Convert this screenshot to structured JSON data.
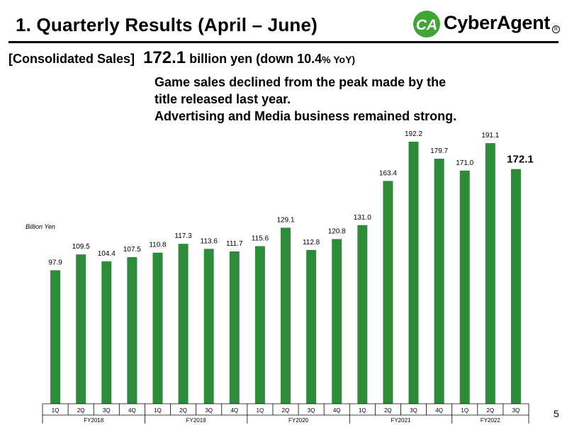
{
  "header": {
    "title": "1.  Quarterly Results (April – June)",
    "logo_text": "CyberAgent"
  },
  "colors": {
    "bar": "#2e8b3a",
    "logo_green": "#3fa535",
    "rule": "#000000"
  },
  "headline": {
    "label": "[Consolidated Sales]",
    "amount": "172.1",
    "amount_suffix": " billion yen (down ",
    "change_value": "10.4",
    "change_suffix": "% YoY)"
  },
  "summary": [
    "Game sales declined from the peak made by the",
    "title released last year.",
    "Advertising and Media business remained strong."
  ],
  "chart_data": {
    "type": "bar",
    "title": "",
    "ylabel": "Billion Yen",
    "ylim": [
      0,
      200
    ],
    "grid": false,
    "categories": [
      "1Q",
      "2Q",
      "3Q",
      "4Q",
      "1Q",
      "2Q",
      "3Q",
      "4Q",
      "1Q",
      "2Q",
      "3Q",
      "4Q",
      "1Q",
      "2Q",
      "3Q",
      "4Q",
      "1Q",
      "2Q",
      "3Q"
    ],
    "values": [
      97.9,
      109.5,
      104.4,
      107.5,
      110.8,
      117.3,
      113.6,
      111.7,
      115.6,
      129.1,
      112.8,
      120.8,
      131.0,
      163.4,
      192.2,
      179.7,
      171.0,
      191.1,
      172.1
    ],
    "value_labels": [
      "97.9",
      "109.5",
      "104.4",
      "107.5",
      "110.8",
      "117.3",
      "113.6",
      "111.7",
      "115.6",
      "129.1",
      "112.8",
      "120.8",
      "131.0",
      "163.4",
      "192.2",
      "179.7",
      "171.0",
      "191.1",
      "172.1"
    ],
    "fiscal_years": [
      {
        "label": "FY2018",
        "count": 4
      },
      {
        "label": "FY2019",
        "count": 4
      },
      {
        "label": "FY2020",
        "count": 4
      },
      {
        "label": "FY2021",
        "count": 4
      },
      {
        "label": "FY2022",
        "count": 3
      }
    ]
  },
  "page_number": "5"
}
